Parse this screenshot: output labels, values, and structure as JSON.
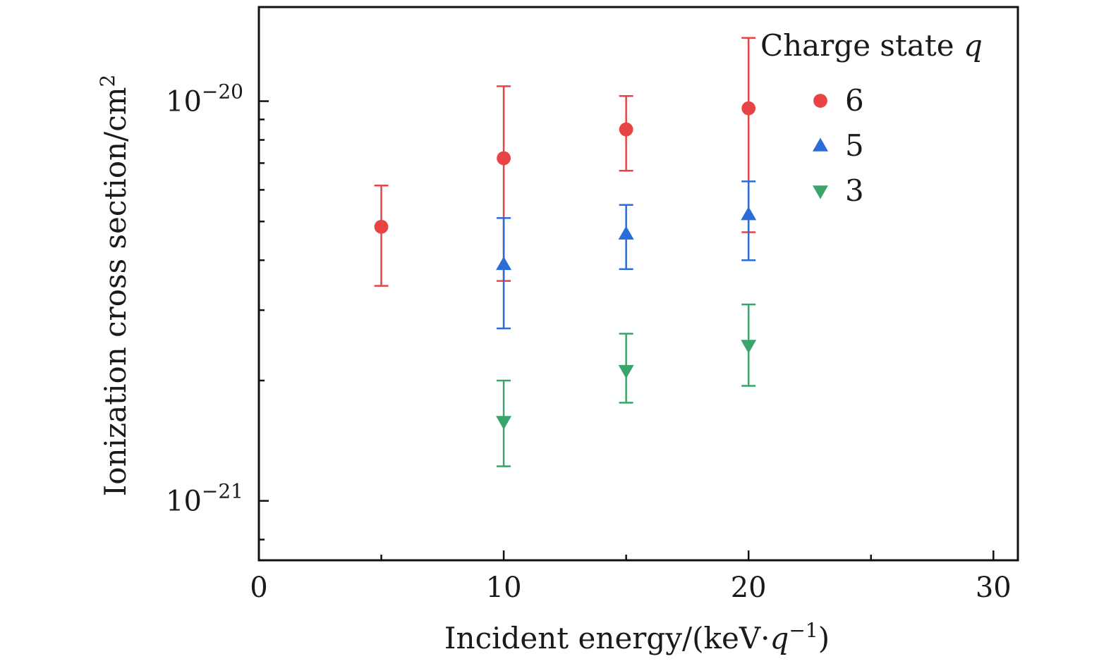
{
  "chart_data": {
    "type": "scatter",
    "title": "",
    "xlabel": "Incident energy/(keV·q",
    "xlabel_sup": "−1",
    "xlabel_end": ")",
    "ylabel": "Ionization cross section/cm",
    "ylabel_sup": "2",
    "xlim": [
      0,
      31
    ],
    "ylim": [
      7.1e-22,
      1.72e-20
    ],
    "yscale": "log",
    "x_ticks": [
      {
        "value": 0,
        "label": "0"
      },
      {
        "value": 10,
        "label": "10"
      },
      {
        "value": 20,
        "label": "20"
      },
      {
        "value": 30,
        "label": "30"
      }
    ],
    "x_minor_ticks": [
      5,
      15,
      25
    ],
    "y_ticks": [
      {
        "value": 1e-21,
        "base": "10",
        "exp": "−21"
      },
      {
        "value": 1e-20,
        "base": "10",
        "exp": "−20"
      }
    ],
    "y_minor_ticks": [
      8e-22,
      2e-21,
      3e-21,
      4e-21,
      5e-21,
      6e-21,
      7e-21,
      8e-21,
      9e-21
    ],
    "legend": {
      "title": "Charge state",
      "title_var": "q",
      "position": "top-right"
    },
    "series": [
      {
        "name": "6",
        "marker": "circle",
        "color": "#e84446",
        "points": [
          {
            "x": 5,
            "y": 4.85e-21,
            "lo": 3.45e-21,
            "hi": 6.15e-21
          },
          {
            "x": 10,
            "y": 7.2e-21,
            "lo": 3.55e-21,
            "hi": 1.09e-20
          },
          {
            "x": 15,
            "y": 8.5e-21,
            "lo": 6.7e-21,
            "hi": 1.03e-20
          },
          {
            "x": 20,
            "y": 9.6e-21,
            "lo": 4.7e-21,
            "hi": 1.44e-20
          }
        ]
      },
      {
        "name": "5",
        "marker": "triangle-up",
        "color": "#2b6dd6",
        "points": [
          {
            "x": 10,
            "y": 3.9e-21,
            "lo": 2.7e-21,
            "hi": 5.1e-21
          },
          {
            "x": 15,
            "y": 4.65e-21,
            "lo": 3.8e-21,
            "hi": 5.5e-21
          },
          {
            "x": 20,
            "y": 5.2e-21,
            "lo": 4e-21,
            "hi": 6.3e-21
          }
        ]
      },
      {
        "name": "3",
        "marker": "triangle-down",
        "color": "#3aa46a",
        "points": [
          {
            "x": 10,
            "y": 1.58e-21,
            "lo": 1.22e-21,
            "hi": 2e-21
          },
          {
            "x": 15,
            "y": 2.12e-21,
            "lo": 1.76e-21,
            "hi": 2.62e-21
          },
          {
            "x": 20,
            "y": 2.45e-21,
            "lo": 1.94e-21,
            "hi": 3.1e-21
          }
        ]
      }
    ]
  }
}
